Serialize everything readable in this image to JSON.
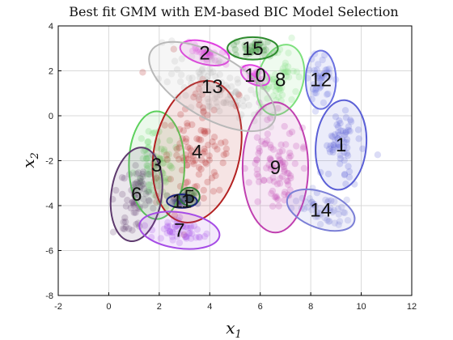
{
  "chart_data": {
    "type": "scatter",
    "title": "Best fit GMM with EM-based BIC Model Selection",
    "xlabel": "x",
    "xlabel_sub": "1",
    "ylabel": "x",
    "ylabel_sub": "2",
    "xlim": [
      -2,
      12
    ],
    "ylim": [
      -8,
      4
    ],
    "xticks": [
      -2,
      0,
      2,
      4,
      6,
      8,
      10,
      12
    ],
    "yticks": [
      -8,
      -6,
      -4,
      -2,
      0,
      2,
      4
    ],
    "grid": true,
    "components": [
      {
        "label": "1",
        "color": "#5a5fd6",
        "center": [
          9.2,
          -1.3
        ],
        "rx": 1.0,
        "ry": 2.0,
        "angle": 5
      },
      {
        "label": "2",
        "color": "#e040e0",
        "center": [
          3.8,
          2.8
        ],
        "rx": 1.0,
        "ry": 0.5,
        "angle": 15
      },
      {
        "label": "3",
        "color": "#5cd15c",
        "center": [
          1.9,
          -2.2
        ],
        "rx": 1.1,
        "ry": 2.4,
        "angle": 0
      },
      {
        "label": "4",
        "color": "#b32020",
        "center": [
          3.5,
          -1.6
        ],
        "rx": 1.7,
        "ry": 3.2,
        "angle": 12
      },
      {
        "label": "5",
        "color": "#2e7d32",
        "center": [
          3.2,
          -3.6
        ],
        "rx": 0.4,
        "ry": 0.4,
        "angle": 0
      },
      {
        "label": "6",
        "color": "#5e3a6e",
        "center": [
          1.1,
          -3.5
        ],
        "rx": 1.0,
        "ry": 2.1,
        "angle": 8
      },
      {
        "label": "7",
        "color": "#a64ce6",
        "center": [
          2.8,
          -5.1
        ],
        "rx": 1.6,
        "ry": 0.8,
        "angle": 8
      },
      {
        "label": "8",
        "color": "#7ee07e",
        "center": [
          6.8,
          1.6
        ],
        "rx": 0.9,
        "ry": 1.6,
        "angle": 15
      },
      {
        "label": "9",
        "color": "#c03fb0",
        "center": [
          6.6,
          -2.3
        ],
        "rx": 1.3,
        "ry": 2.9,
        "angle": 0
      },
      {
        "label": "10",
        "color": "#e040e0",
        "center": [
          5.8,
          1.8
        ],
        "rx": 0.6,
        "ry": 0.4,
        "angle": 25
      },
      {
        "label": "11",
        "color": "#1a237e",
        "center": [
          2.9,
          -3.8
        ],
        "rx": 0.6,
        "ry": 0.3,
        "angle": 0
      },
      {
        "label": "12",
        "color": "#6a70e0",
        "center": [
          8.4,
          1.6
        ],
        "rx": 0.6,
        "ry": 1.3,
        "angle": 0
      },
      {
        "label": "13",
        "color": "#b8b8b8",
        "center": [
          4.1,
          1.3
        ],
        "rx": 2.8,
        "ry": 1.4,
        "angle": 30
      },
      {
        "label": "14",
        "color": "#7b7fd6",
        "center": [
          8.4,
          -4.2
        ],
        "rx": 1.4,
        "ry": 0.8,
        "angle": 20
      },
      {
        "label": "15",
        "color": "#2e8b2e",
        "center": [
          5.7,
          3.0
        ],
        "rx": 1.0,
        "ry": 0.5,
        "angle": 0
      }
    ]
  }
}
